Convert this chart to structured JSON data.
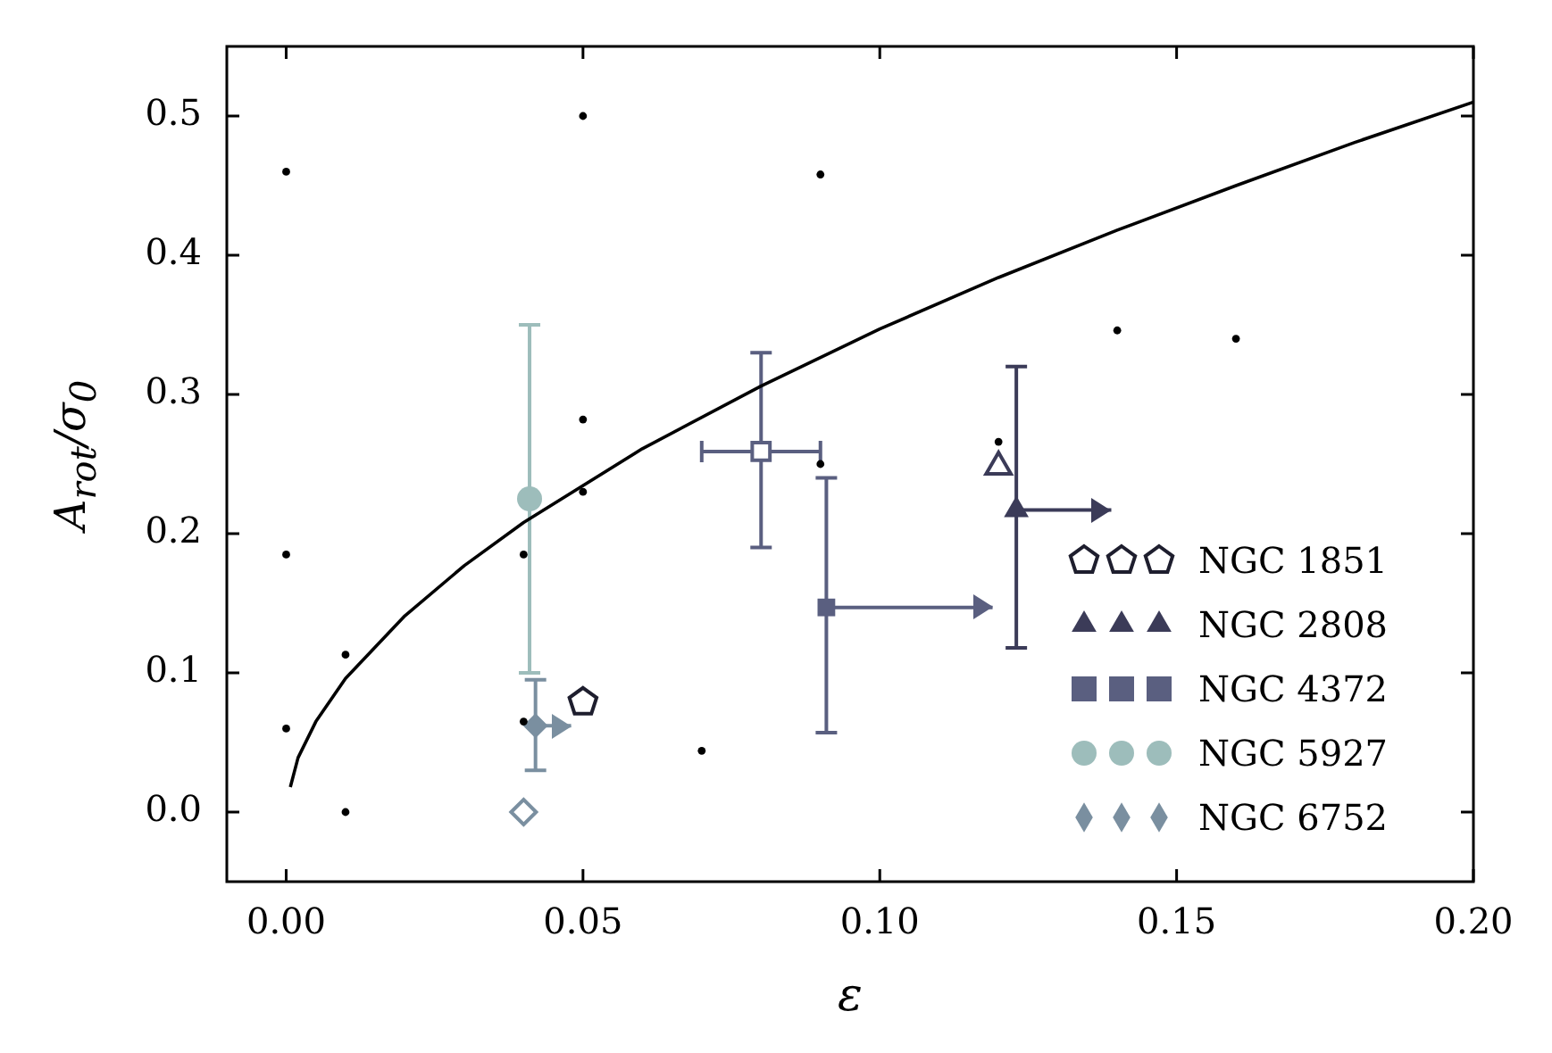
{
  "chart_data": {
    "type": "scatter",
    "xlabel": "ε",
    "ylabel": "A$_{rot}$/σ$_{0}$",
    "xlim": [
      -0.01,
      0.2
    ],
    "ylim": [
      -0.05,
      0.55
    ],
    "xticks": [
      {
        "value": 0,
        "label": "0.00"
      },
      0.05,
      {
        "value": 0.1,
        "label": "0.10"
      },
      0.15,
      {
        "value": 0.2,
        "label": "0.20"
      }
    ],
    "yticks": [
      {
        "value": 0,
        "label": "0.0"
      },
      0.1,
      0.2,
      0.3,
      0.4,
      0.5
    ],
    "grid": false,
    "legend": "bottom right",
    "series": [
      {
        "type": "scatter",
        "marker": "point",
        "color": "#000000",
        "x": [
          0,
          0,
          0,
          0.01,
          0.01,
          0.04,
          0.04,
          0.05,
          0.05,
          0.05,
          0.07,
          0.09,
          0.09,
          0.12,
          0.14,
          0.16
        ],
        "values": [
          0.46,
          0.185,
          0.06,
          0.113,
          0.0,
          0.185,
          0.065,
          0.5,
          0.282,
          0.23,
          0.044,
          0.458,
          0.25,
          0.266,
          0.346,
          0.34
        ]
      },
      {
        "type": "line",
        "marker": "none",
        "color": "#000000",
        "x": [
          0.0007,
          0.002,
          0.005,
          0.01,
          0.02,
          0.03,
          0.04,
          0.06,
          0.08,
          0.1,
          0.12,
          0.14,
          0.16,
          0.18,
          0.2
        ],
        "values": [
          0.018,
          0.039,
          0.065,
          0.096,
          0.141,
          0.177,
          0.208,
          0.261,
          0.306,
          0.347,
          0.384,
          0.418,
          0.45,
          0.481,
          0.51
        ]
      },
      {
        "name": "NGC 1851",
        "type": "scatter",
        "color": "#1e1e2e",
        "x": [
          0.05
        ],
        "values": [
          0.079
        ]
      },
      {
        "type": "scatter",
        "marker": "triangle-open",
        "color": "#3b3b58",
        "x": [
          0.12
        ],
        "values": [
          0.248
        ]
      },
      {
        "name": "NGC 2808",
        "type": "scatter",
        "marker": "triangle",
        "color": "#3b3b58",
        "x": [
          0.123
        ],
        "values": [
          0.217
        ],
        "errors": [
          [
            0.118,
            0.32
          ]
        ],
        "xerrors": [
          [
            0.123,
            0.139
          ]
        ]
      },
      {
        "type": "scatter",
        "marker": "square-open",
        "color": "#5a5f80",
        "x": [
          0.08
        ],
        "values": [
          0.259
        ],
        "errors": [
          [
            0.19,
            0.33
          ]
        ],
        "xerrors": [
          [
            0.07,
            0.09
          ]
        ]
      },
      {
        "name": "NGC 4372",
        "type": "scatter",
        "marker": "square",
        "color": "#5a5f80",
        "x": [
          0.091
        ],
        "values": [
          0.147
        ],
        "errors": [
          [
            0.057,
            0.24
          ]
        ],
        "xerrors": [
          [
            0.091,
            0.119
          ]
        ]
      },
      {
        "name": "NGC 5927",
        "type": "scatter",
        "marker": "circle",
        "color": "#9dbdbb",
        "x": [
          0.041
        ],
        "values": [
          0.225
        ],
        "errors": [
          [
            0.1,
            0.35
          ]
        ]
      },
      {
        "type": "scatter",
        "marker": "diamond-open",
        "color": "#7a8fa0",
        "x": [
          0.04
        ],
        "values": [
          0.0
        ]
      },
      {
        "name": "NGC 6752",
        "type": "scatter",
        "marker": "diamond",
        "color": "#7a8fa0",
        "x": [
          0.042
        ],
        "values": [
          0.062
        ],
        "errors": [
          [
            0.03,
            0.095
          ]
        ],
        "xerrors": [
          [
            0.042,
            0.048
          ]
        ]
      }
    ]
  }
}
